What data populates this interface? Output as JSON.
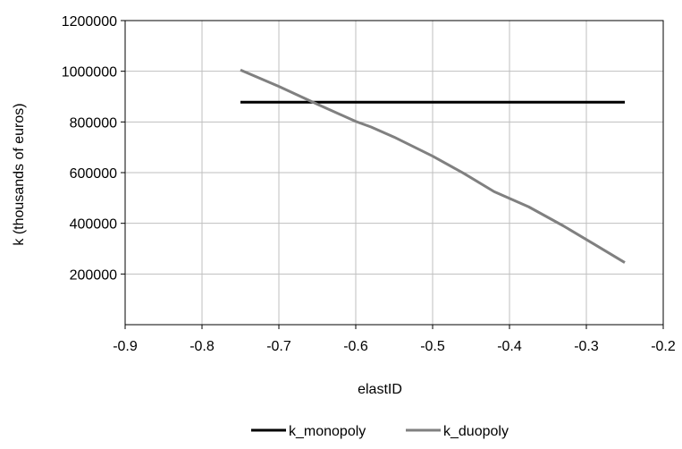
{
  "chart_data": {
    "type": "line",
    "title": "",
    "xlabel": "elastID",
    "ylabel": "k (thousands of euros)",
    "xlim": [
      -0.9,
      -0.2
    ],
    "ylim": [
      0,
      1200000
    ],
    "x_ticks": [
      -0.9,
      -0.8,
      -0.7,
      -0.6,
      -0.5,
      -0.4,
      -0.3,
      -0.2
    ],
    "x_tick_labels": [
      "-0.9",
      "-0.8",
      "-0.7",
      "-0.6",
      "-0.5",
      "-0.4",
      "-0.3",
      "-0.2"
    ],
    "y_ticks": [
      200000,
      400000,
      600000,
      800000,
      1000000,
      1200000
    ],
    "y_tick_labels": [
      "200000",
      "400000",
      "600000",
      "800000",
      "1000000",
      "1200000"
    ],
    "grid": true,
    "legend_position": "bottom-center",
    "series": [
      {
        "name": "k_monopoly",
        "color": "#000000",
        "x": [
          -0.75,
          -0.25
        ],
        "y": [
          878000,
          878000
        ]
      },
      {
        "name": "k_duopoly",
        "color": "#808080",
        "x": [
          -0.75,
          -0.7,
          -0.65,
          -0.6,
          -0.58,
          -0.55,
          -0.5,
          -0.46,
          -0.42,
          -0.375,
          -0.33,
          -0.29,
          -0.25
        ],
        "y": [
          1005000,
          940000,
          870000,
          802000,
          780000,
          740000,
          665000,
          598000,
          525000,
          465000,
          390000,
          318000,
          245000
        ]
      }
    ]
  }
}
